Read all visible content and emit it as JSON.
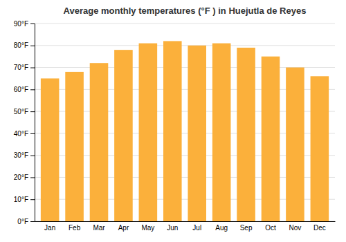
{
  "chart_data": {
    "type": "bar",
    "title": "Average monthly temperatures (°F ) in Huejutla de Reyes",
    "categories": [
      "Jan",
      "Feb",
      "Mar",
      "Apr",
      "May",
      "Jun",
      "Jul",
      "Aug",
      "Sep",
      "Oct",
      "Nov",
      "Dec"
    ],
    "values": [
      65,
      68,
      72,
      78,
      81,
      82,
      80,
      81,
      79,
      75,
      70,
      66
    ],
    "color": "#FBB03B",
    "ylim": [
      0,
      90
    ],
    "yticks": [
      {
        "value": 0,
        "label": "0°F"
      },
      {
        "value": 10,
        "label": "10°F"
      },
      {
        "value": 20,
        "label": "20°F"
      },
      {
        "value": 30,
        "label": "30°F"
      },
      {
        "value": 40,
        "label": "40°F"
      },
      {
        "value": 50,
        "label": "50°F"
      },
      {
        "value": 60,
        "label": "60°F"
      },
      {
        "value": 70,
        "label": "70°F"
      },
      {
        "value": 80,
        "label": "80°F"
      },
      {
        "value": 90,
        "label": "90°F"
      }
    ],
    "grid": true
  }
}
